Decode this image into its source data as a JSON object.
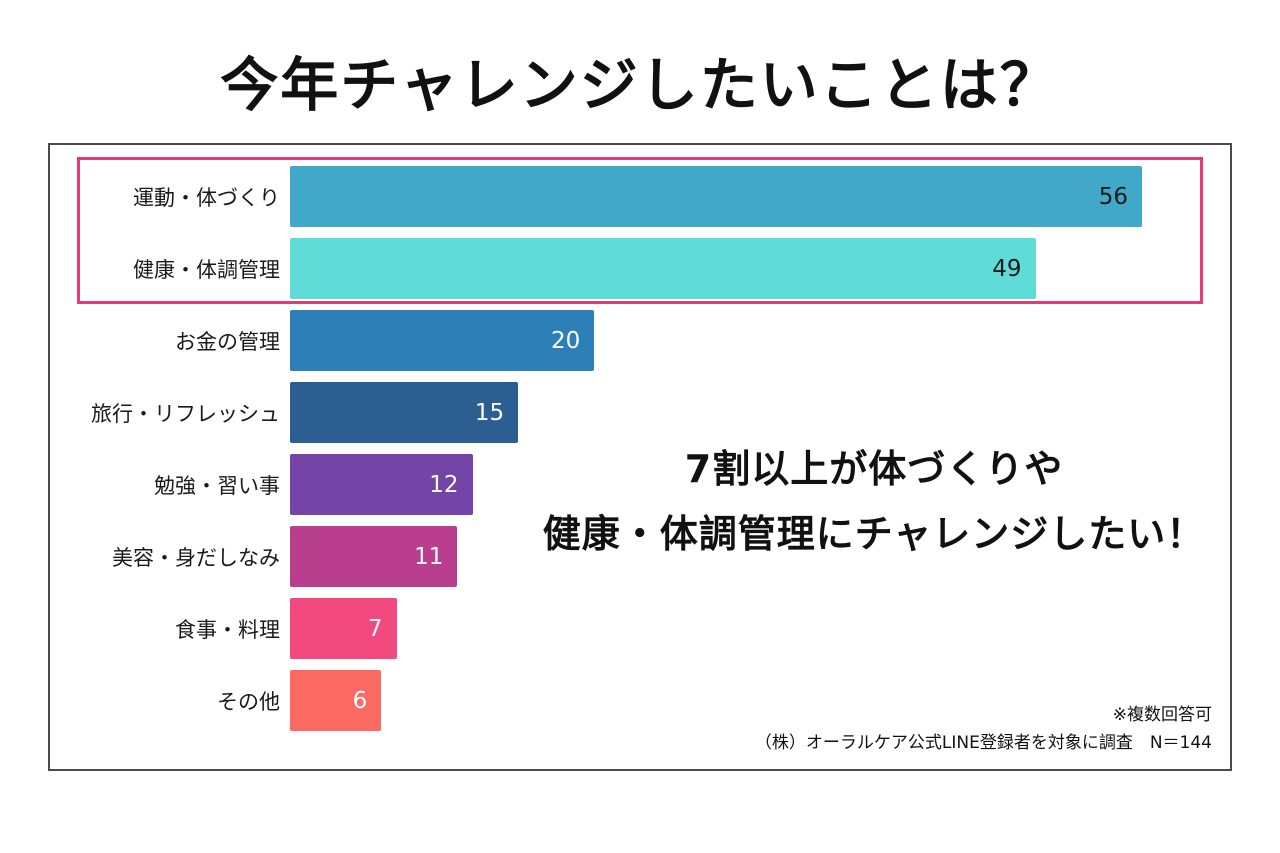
{
  "title": "今年チャレンジしたいことは？",
  "chart_data": {
    "type": "bar",
    "orientation": "horizontal",
    "title": "今年チャレンジしたいことは？",
    "categories": [
      "運動・体づくり",
      "健康・体調管理",
      "お金の管理",
      "旅行・リフレッシュ",
      "勉強・習い事",
      "美容・身だしなみ",
      "食事・料理",
      "その他"
    ],
    "values": [
      56,
      49,
      20,
      15,
      12,
      11,
      7,
      6
    ],
    "bar_colors": [
      "#41a8c9",
      "#5fdcd7",
      "#2d7fb8",
      "#2d5e92",
      "#7444a6",
      "#b93e8d",
      "#f24a7e",
      "#fb6a62"
    ],
    "value_label_colors": [
      "#1a1a1a",
      "#1a1a1a",
      "#ffffff",
      "#ffffff",
      "#ffffff",
      "#ffffff",
      "#ffffff",
      "#ffffff"
    ],
    "xmax": 56,
    "grid": false,
    "legend": false,
    "highlight": {
      "rows": [
        0,
        1
      ],
      "border_color": "#e73a72"
    }
  },
  "annotation": {
    "line1": "7割以上が体づくりや",
    "line2": "健康・体調管理にチャレンジしたい！"
  },
  "footnotes": {
    "note1": "※複数回答可",
    "note2": "（株）オーラルケア公式LINE登録者を対象に調査　N＝144"
  }
}
